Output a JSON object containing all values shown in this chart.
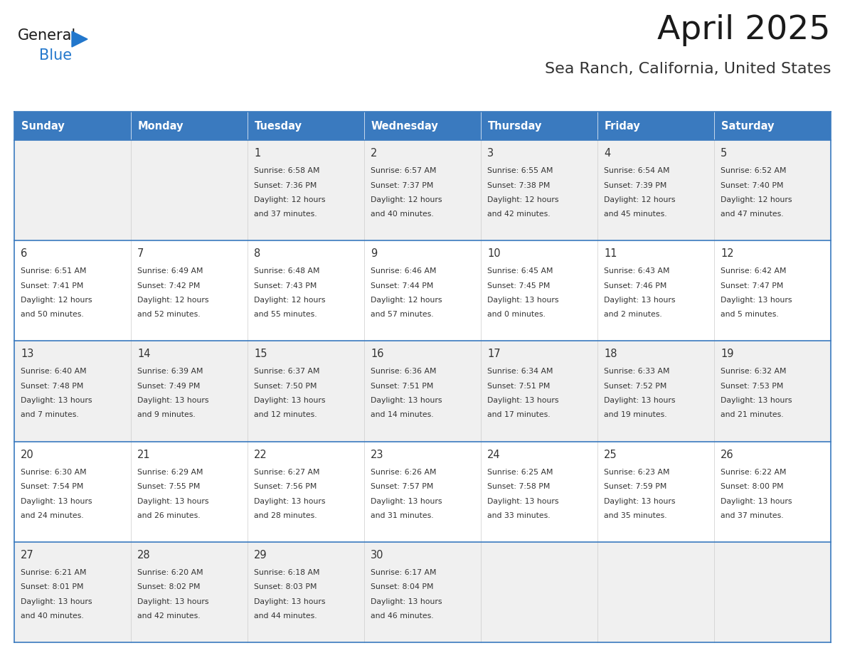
{
  "title": "April 2025",
  "subtitle": "Sea Ranch, California, United States",
  "days_of_week": [
    "Sunday",
    "Monday",
    "Tuesday",
    "Wednesday",
    "Thursday",
    "Friday",
    "Saturday"
  ],
  "header_bg": "#3a7abf",
  "header_text_color": "#FFFFFF",
  "cell_bg_light": "#f0f0f0",
  "cell_bg_white": "#FFFFFF",
  "border_color": "#3a7abf",
  "row_divider_color": "#3a7abf",
  "text_color": "#333333",
  "title_color": "#1a1a1a",
  "subtitle_color": "#333333",
  "logo_general_color": "#1a1a1a",
  "logo_blue_color": "#2277CC",
  "fig_width": 11.88,
  "fig_height": 9.18,
  "dpi": 100,
  "calendar_data": [
    [
      {
        "day": null,
        "sunrise": null,
        "sunset": null,
        "daylight": null
      },
      {
        "day": null,
        "sunrise": null,
        "sunset": null,
        "daylight": null
      },
      {
        "day": 1,
        "sunrise": "6:58 AM",
        "sunset": "7:36 PM",
        "daylight": "12 hours\nand 37 minutes."
      },
      {
        "day": 2,
        "sunrise": "6:57 AM",
        "sunset": "7:37 PM",
        "daylight": "12 hours\nand 40 minutes."
      },
      {
        "day": 3,
        "sunrise": "6:55 AM",
        "sunset": "7:38 PM",
        "daylight": "12 hours\nand 42 minutes."
      },
      {
        "day": 4,
        "sunrise": "6:54 AM",
        "sunset": "7:39 PM",
        "daylight": "12 hours\nand 45 minutes."
      },
      {
        "day": 5,
        "sunrise": "6:52 AM",
        "sunset": "7:40 PM",
        "daylight": "12 hours\nand 47 minutes."
      }
    ],
    [
      {
        "day": 6,
        "sunrise": "6:51 AM",
        "sunset": "7:41 PM",
        "daylight": "12 hours\nand 50 minutes."
      },
      {
        "day": 7,
        "sunrise": "6:49 AM",
        "sunset": "7:42 PM",
        "daylight": "12 hours\nand 52 minutes."
      },
      {
        "day": 8,
        "sunrise": "6:48 AM",
        "sunset": "7:43 PM",
        "daylight": "12 hours\nand 55 minutes."
      },
      {
        "day": 9,
        "sunrise": "6:46 AM",
        "sunset": "7:44 PM",
        "daylight": "12 hours\nand 57 minutes."
      },
      {
        "day": 10,
        "sunrise": "6:45 AM",
        "sunset": "7:45 PM",
        "daylight": "13 hours\nand 0 minutes."
      },
      {
        "day": 11,
        "sunrise": "6:43 AM",
        "sunset": "7:46 PM",
        "daylight": "13 hours\nand 2 minutes."
      },
      {
        "day": 12,
        "sunrise": "6:42 AM",
        "sunset": "7:47 PM",
        "daylight": "13 hours\nand 5 minutes."
      }
    ],
    [
      {
        "day": 13,
        "sunrise": "6:40 AM",
        "sunset": "7:48 PM",
        "daylight": "13 hours\nand 7 minutes."
      },
      {
        "day": 14,
        "sunrise": "6:39 AM",
        "sunset": "7:49 PM",
        "daylight": "13 hours\nand 9 minutes."
      },
      {
        "day": 15,
        "sunrise": "6:37 AM",
        "sunset": "7:50 PM",
        "daylight": "13 hours\nand 12 minutes."
      },
      {
        "day": 16,
        "sunrise": "6:36 AM",
        "sunset": "7:51 PM",
        "daylight": "13 hours\nand 14 minutes."
      },
      {
        "day": 17,
        "sunrise": "6:34 AM",
        "sunset": "7:51 PM",
        "daylight": "13 hours\nand 17 minutes."
      },
      {
        "day": 18,
        "sunrise": "6:33 AM",
        "sunset": "7:52 PM",
        "daylight": "13 hours\nand 19 minutes."
      },
      {
        "day": 19,
        "sunrise": "6:32 AM",
        "sunset": "7:53 PM",
        "daylight": "13 hours\nand 21 minutes."
      }
    ],
    [
      {
        "day": 20,
        "sunrise": "6:30 AM",
        "sunset": "7:54 PM",
        "daylight": "13 hours\nand 24 minutes."
      },
      {
        "day": 21,
        "sunrise": "6:29 AM",
        "sunset": "7:55 PM",
        "daylight": "13 hours\nand 26 minutes."
      },
      {
        "day": 22,
        "sunrise": "6:27 AM",
        "sunset": "7:56 PM",
        "daylight": "13 hours\nand 28 minutes."
      },
      {
        "day": 23,
        "sunrise": "6:26 AM",
        "sunset": "7:57 PM",
        "daylight": "13 hours\nand 31 minutes."
      },
      {
        "day": 24,
        "sunrise": "6:25 AM",
        "sunset": "7:58 PM",
        "daylight": "13 hours\nand 33 minutes."
      },
      {
        "day": 25,
        "sunrise": "6:23 AM",
        "sunset": "7:59 PM",
        "daylight": "13 hours\nand 35 minutes."
      },
      {
        "day": 26,
        "sunrise": "6:22 AM",
        "sunset": "8:00 PM",
        "daylight": "13 hours\nand 37 minutes."
      }
    ],
    [
      {
        "day": 27,
        "sunrise": "6:21 AM",
        "sunset": "8:01 PM",
        "daylight": "13 hours\nand 40 minutes."
      },
      {
        "day": 28,
        "sunrise": "6:20 AM",
        "sunset": "8:02 PM",
        "daylight": "13 hours\nand 42 minutes."
      },
      {
        "day": 29,
        "sunrise": "6:18 AM",
        "sunset": "8:03 PM",
        "daylight": "13 hours\nand 44 minutes."
      },
      {
        "day": 30,
        "sunrise": "6:17 AM",
        "sunset": "8:04 PM",
        "daylight": "13 hours\nand 46 minutes."
      },
      {
        "day": null,
        "sunrise": null,
        "sunset": null,
        "daylight": null
      },
      {
        "day": null,
        "sunrise": null,
        "sunset": null,
        "daylight": null
      },
      {
        "day": null,
        "sunrise": null,
        "sunset": null,
        "daylight": null
      }
    ]
  ]
}
